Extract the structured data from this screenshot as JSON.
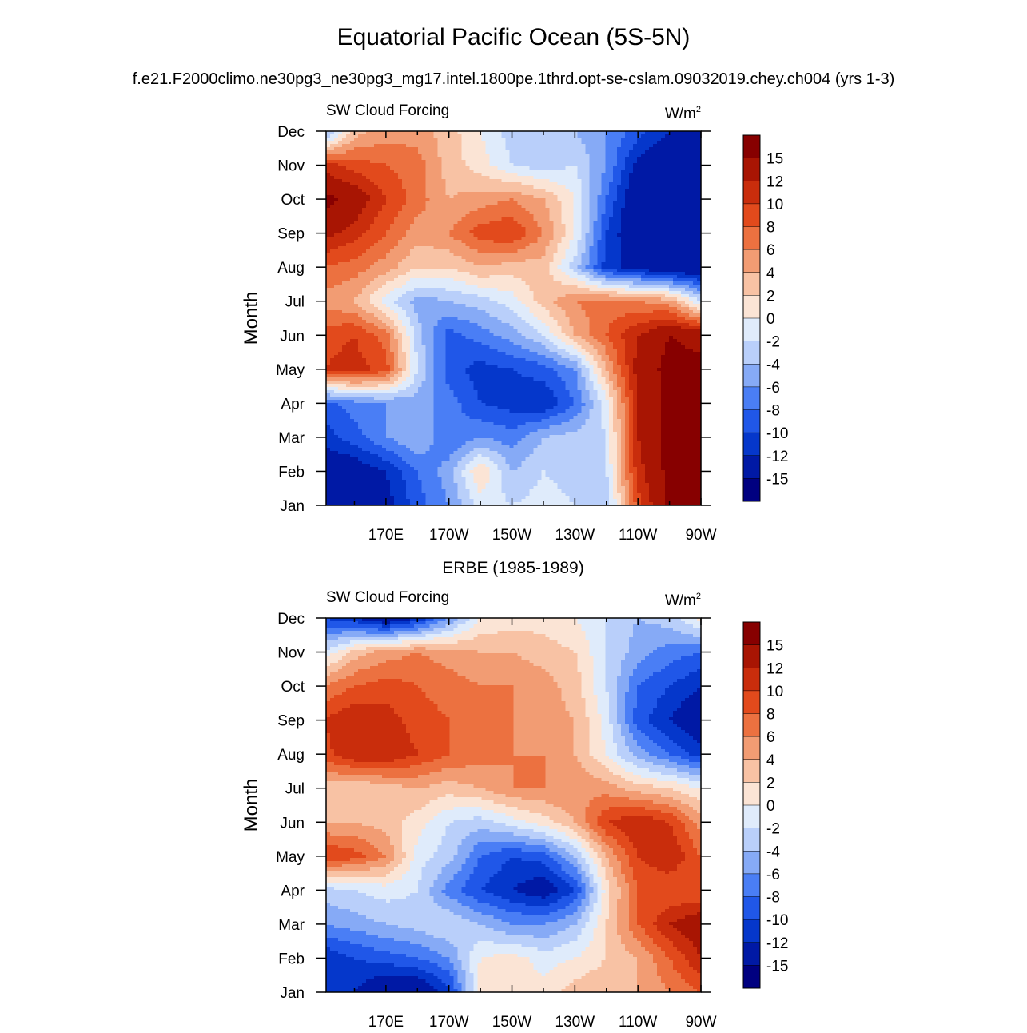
{
  "figure": {
    "title": "Equatorial Pacific Ocean (5S-5N)",
    "subtitle": "f.e21.F2000climo.ne30pg3_ne30pg3_mg17.intel.1800pe.1thrd.opt-se-cslam.09032019.chey.ch004 (yrs 1-3)"
  },
  "chart_data": [
    {
      "type": "heatmap",
      "panel_title": "",
      "left_label": "SW Cloud Forcing",
      "right_label_base": "W/m",
      "right_label_sup": "2",
      "ylabel": "Month",
      "xlabel": "",
      "x_ticks": [
        "170E",
        "170W",
        "150W",
        "130W",
        "110W",
        "90W"
      ],
      "x_tick_lon": [
        170,
        190,
        210,
        230,
        250,
        270
      ],
      "xlim": [
        151,
        270
      ],
      "y_ticks": [
        "Jan",
        "Feb",
        "Mar",
        "Apr",
        "May",
        "Jun",
        "Jul",
        "Aug",
        "Sep",
        "Oct",
        "Nov",
        "Dec"
      ],
      "x": [
        150,
        160,
        170,
        180,
        190,
        200,
        210,
        220,
        230,
        240,
        250,
        260,
        270
      ],
      "values": [
        [
          -15,
          -15,
          -13,
          -9,
          -6,
          -1,
          -2,
          -1,
          -2,
          -4,
          9,
          16,
          16
        ],
        [
          -15,
          -14,
          -12,
          -8,
          -5,
          2,
          -4,
          -2,
          -3,
          -2,
          11,
          16,
          16
        ],
        [
          -11,
          -9,
          -6,
          -4,
          -8,
          -6,
          -7,
          -4,
          -3,
          -2,
          12,
          16,
          16
        ],
        [
          -9,
          -7,
          -6,
          -5,
          -7,
          -10,
          -11,
          -12,
          -8,
          -1,
          12,
          16,
          16
        ],
        [
          10,
          11,
          9,
          -2,
          -9,
          -11,
          -10,
          -9,
          -6,
          4,
          13,
          16,
          16
        ],
        [
          9,
          10,
          7,
          -3,
          -9,
          -7,
          -5,
          -2,
          4,
          8,
          12,
          15,
          14
        ],
        [
          5,
          4,
          -1,
          -5,
          -4,
          -3,
          -1,
          3,
          6,
          7,
          6,
          5,
          -2
        ],
        [
          8,
          7,
          5,
          2,
          2,
          4,
          3,
          3,
          -3,
          -11,
          -13,
          -15,
          -15
        ],
        [
          13,
          11,
          8,
          5,
          6,
          9,
          10,
          6,
          0,
          -10,
          -15,
          -15,
          -15
        ],
        [
          16,
          14,
          10,
          7,
          4,
          5,
          6,
          4,
          0,
          -8,
          -15,
          -15,
          -15
        ],
        [
          11,
          9,
          8,
          7,
          3,
          1,
          -2,
          -3,
          -2,
          -6,
          -13,
          -15,
          -15
        ],
        [
          -6,
          3,
          5,
          5,
          3,
          0,
          -3,
          -4,
          -4,
          -6,
          -9,
          -12,
          -15
        ]
      ],
      "levels": [
        -15,
        -12,
        -10,
        -8,
        -6,
        -4,
        -2,
        0,
        2,
        4,
        6,
        8,
        10,
        12,
        15
      ],
      "colorbar_labels": [
        "15",
        "12",
        "10",
        "8",
        "6",
        "4",
        "2",
        "0",
        "-2",
        "-4",
        "-6",
        "-8",
        "-10",
        "-12",
        "-15"
      ],
      "colors": [
        "#000080",
        "#0019a5",
        "#0537cb",
        "#2057e8",
        "#4a7ef5",
        "#86aaf6",
        "#b9cffa",
        "#dfebfb",
        "#fbe4d5",
        "#f8c2a4",
        "#f29c73",
        "#ec7140",
        "#e24a1c",
        "#c92d0c",
        "#a81503",
        "#870000"
      ]
    },
    {
      "type": "heatmap",
      "panel_title": "ERBE (1985-1989)",
      "left_label": "SW Cloud Forcing",
      "right_label_base": "W/m",
      "right_label_sup": "2",
      "ylabel": "Month",
      "xlabel": "",
      "x_ticks": [
        "170E",
        "170W",
        "150W",
        "130W",
        "110W",
        "90W"
      ],
      "x_tick_lon": [
        170,
        190,
        210,
        230,
        250,
        270
      ],
      "xlim": [
        151,
        270
      ],
      "y_ticks": [
        "Jan",
        "Feb",
        "Mar",
        "Apr",
        "May",
        "Jun",
        "Jul",
        "Aug",
        "Sep",
        "Oct",
        "Nov",
        "Dec"
      ],
      "x": [
        150,
        160,
        170,
        180,
        190,
        200,
        210,
        220,
        230,
        240,
        250,
        260,
        270
      ],
      "values": [
        [
          -12,
          -12,
          -15,
          -15,
          -11,
          1,
          1,
          1,
          3,
          4,
          4,
          6,
          8
        ],
        [
          -12,
          -10,
          -9,
          -8,
          -6,
          0,
          1,
          -1,
          0,
          2,
          4,
          8,
          12
        ],
        [
          -6,
          -5,
          -4,
          -3,
          -2,
          -4,
          -6,
          -6,
          -4,
          2,
          8,
          12,
          14
        ],
        [
          -3,
          -2,
          -1,
          -2,
          -7,
          -10,
          -12,
          -14,
          -10,
          1,
          8,
          8,
          8
        ],
        [
          10,
          9,
          6,
          -1,
          -3,
          -8,
          -10,
          -9,
          -4,
          4,
          10,
          12,
          8
        ],
        [
          4,
          4,
          3,
          1,
          -2,
          -3,
          -1,
          1,
          4,
          10,
          12,
          10,
          5
        ],
        [
          3,
          2,
          3,
          4,
          3,
          4,
          6,
          6,
          6,
          5,
          3,
          2,
          0
        ],
        [
          9,
          12,
          12,
          10,
          8,
          7,
          6,
          6,
          4,
          0,
          -5,
          -8,
          -11
        ],
        [
          10,
          12,
          11,
          9,
          8,
          7,
          6,
          5,
          4,
          -1,
          -9,
          -12,
          -15
        ],
        [
          6,
          8,
          9,
          8,
          7,
          6,
          6,
          5,
          3,
          -2,
          -8,
          -10,
          -12
        ],
        [
          -2,
          3,
          5,
          6,
          5,
          4,
          4,
          3,
          2,
          -2,
          -5,
          -7,
          -8
        ],
        [
          -10,
          -12,
          -15,
          -12,
          -6,
          0,
          1,
          1,
          0,
          -2,
          -4,
          -3,
          1
        ]
      ],
      "levels": [
        -15,
        -12,
        -10,
        -8,
        -6,
        -4,
        -2,
        0,
        2,
        4,
        6,
        8,
        10,
        12,
        15
      ],
      "colorbar_labels": [
        "15",
        "12",
        "10",
        "8",
        "6",
        "4",
        "2",
        "0",
        "-2",
        "-4",
        "-6",
        "-8",
        "-10",
        "-12",
        "-15"
      ],
      "colors": [
        "#000080",
        "#0019a5",
        "#0537cb",
        "#2057e8",
        "#4a7ef5",
        "#86aaf6",
        "#b9cffa",
        "#dfebfb",
        "#fbe4d5",
        "#f8c2a4",
        "#f29c73",
        "#ec7140",
        "#e24a1c",
        "#c92d0c",
        "#a81503",
        "#870000"
      ]
    }
  ]
}
